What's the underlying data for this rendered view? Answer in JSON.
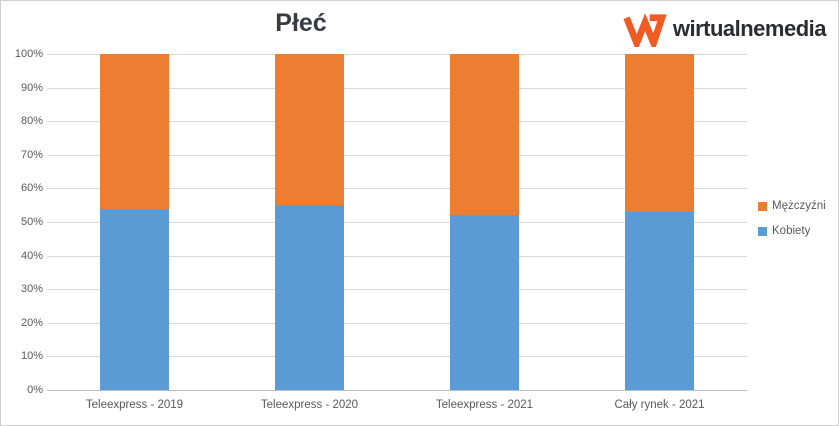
{
  "title": "Płeć",
  "logo": {
    "text": "wirtualnemedia",
    "mark_color": "#F15A22",
    "text_color": "#2B2B33"
  },
  "chart_data": {
    "type": "bar",
    "stacked": true,
    "title": "Płeć",
    "categories": [
      "Teleexpress - 2019",
      "Teleexpress - 2020",
      "Teleexpress - 2021",
      "Cały rynek - 2021"
    ],
    "series": [
      {
        "name": "Kobiety",
        "color": "#5B9BD5",
        "values": [
          54,
          55,
          52,
          53
        ]
      },
      {
        "name": "Mężczyźni",
        "color": "#ED7D31",
        "values": [
          46,
          45,
          48,
          47
        ]
      }
    ],
    "legend_order": [
      "Mężczyźni",
      "Kobiety"
    ],
    "legend_position": "right",
    "xlabel": "",
    "ylabel": "",
    "ylim": [
      0,
      100
    ],
    "ytick_step": 10,
    "ytick_labels": [
      "0%",
      "10%",
      "20%",
      "30%",
      "40%",
      "50%",
      "60%",
      "70%",
      "80%",
      "90%",
      "100%"
    ],
    "grid": true
  }
}
